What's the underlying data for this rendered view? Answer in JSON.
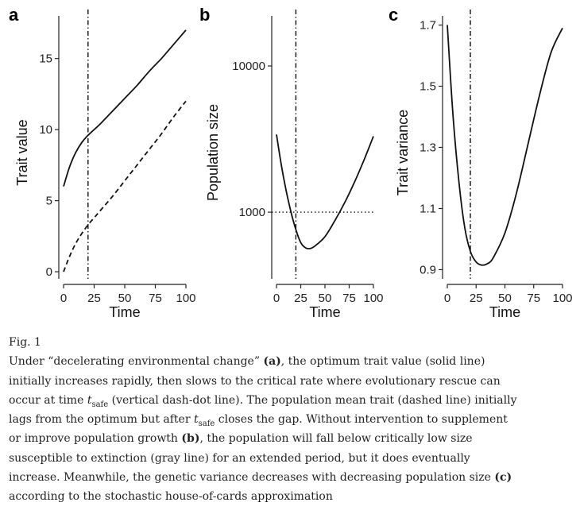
{
  "figure": {
    "panels": [
      {
        "letter": "a",
        "ylabel": "Trait value",
        "xlabel": "Time",
        "xticks": [
          0,
          25,
          50,
          75,
          100
        ],
        "yticks": [
          0,
          5,
          10,
          15
        ],
        "ylim": [
          -0.5,
          18
        ],
        "log_y": false,
        "vline_x": 20,
        "series": [
          {
            "style": "solid",
            "x": [
              0,
              5,
              10,
              15,
              20,
              25,
              30,
              40,
              50,
              60,
              70,
              80,
              90,
              100
            ],
            "y": [
              6.0,
              7.4,
              8.4,
              9.1,
              9.6,
              10.0,
              10.4,
              11.3,
              12.2,
              13.1,
              14.1,
              15.0,
              16.0,
              17.0
            ]
          },
          {
            "style": "dashed",
            "x": [
              0,
              5,
              10,
              15,
              20,
              25,
              30,
              40,
              50,
              60,
              70,
              80,
              90,
              100
            ],
            "y": [
              0.0,
              1.1,
              2.0,
              2.7,
              3.3,
              3.8,
              4.3,
              5.3,
              6.4,
              7.5,
              8.6,
              9.7,
              10.9,
              12.0
            ]
          }
        ]
      },
      {
        "letter": "b",
        "ylabel": "Population size",
        "xlabel": "Time",
        "xticks": [
          0,
          25,
          50,
          75,
          100
        ],
        "yticks": [
          1000,
          10000
        ],
        "ytick_labels": [
          "1000",
          "10000"
        ],
        "ylim": [
          350,
          22000
        ],
        "log_y": true,
        "vline_x": 20,
        "hline_y": 1000,
        "series": [
          {
            "style": "solid",
            "x": [
              0,
              5,
              10,
              15,
              20,
              25,
              30,
              35,
              40,
              50,
              60,
              70,
              80,
              90,
              100
            ],
            "y": [
              3400,
              2100,
              1400,
              1000,
              760,
              620,
              570,
              565,
              590,
              680,
              870,
              1150,
              1580,
              2250,
              3300
            ]
          }
        ]
      },
      {
        "letter": "c",
        "ylabel": "Trait variance",
        "xlabel": "Time",
        "xticks": [
          0,
          25,
          50,
          75,
          100
        ],
        "yticks": [
          0.9,
          1.1,
          1.3,
          1.5,
          1.7
        ],
        "ylim": [
          0.87,
          1.73
        ],
        "log_y": false,
        "vline_x": 20,
        "series": [
          {
            "style": "solid",
            "x": [
              0,
              5,
              10,
              15,
              20,
              25,
              30,
              35,
              40,
              50,
              60,
              70,
              80,
              90,
              100
            ],
            "y": [
              1.7,
              1.4,
              1.19,
              1.04,
              0.96,
              0.925,
              0.915,
              0.92,
              0.94,
              1.02,
              1.15,
              1.31,
              1.47,
              1.61,
              1.69
            ]
          }
        ]
      }
    ]
  },
  "caption": {
    "fig_label": "Fig. 1",
    "p1": "Under “decelerating environmental change” ",
    "a": "(a)",
    "p2": ", the optimum trait value (solid line) initially increases rapidly, then slows to the critical rate where evolutionary rescue can occur at time ",
    "t1": "t",
    "sub1": "safe",
    "p3": " (vertical dash-dot line). The population mean trait (dashed line) initially lags from the optimum but after ",
    "t2": "t",
    "sub2": "safe",
    "p4": " closes the gap. Without intervention to supplement or improve population growth ",
    "b": "(b)",
    "p5": ", the population will fall below critically low size susceptible to extinction (gray line) for an extended period, but it does eventually increase. Meanwhile, the genetic variance decreases with decreasing population size ",
    "c": "(c)",
    "p6": " according to the stochastic house-of-cards approximation"
  }
}
